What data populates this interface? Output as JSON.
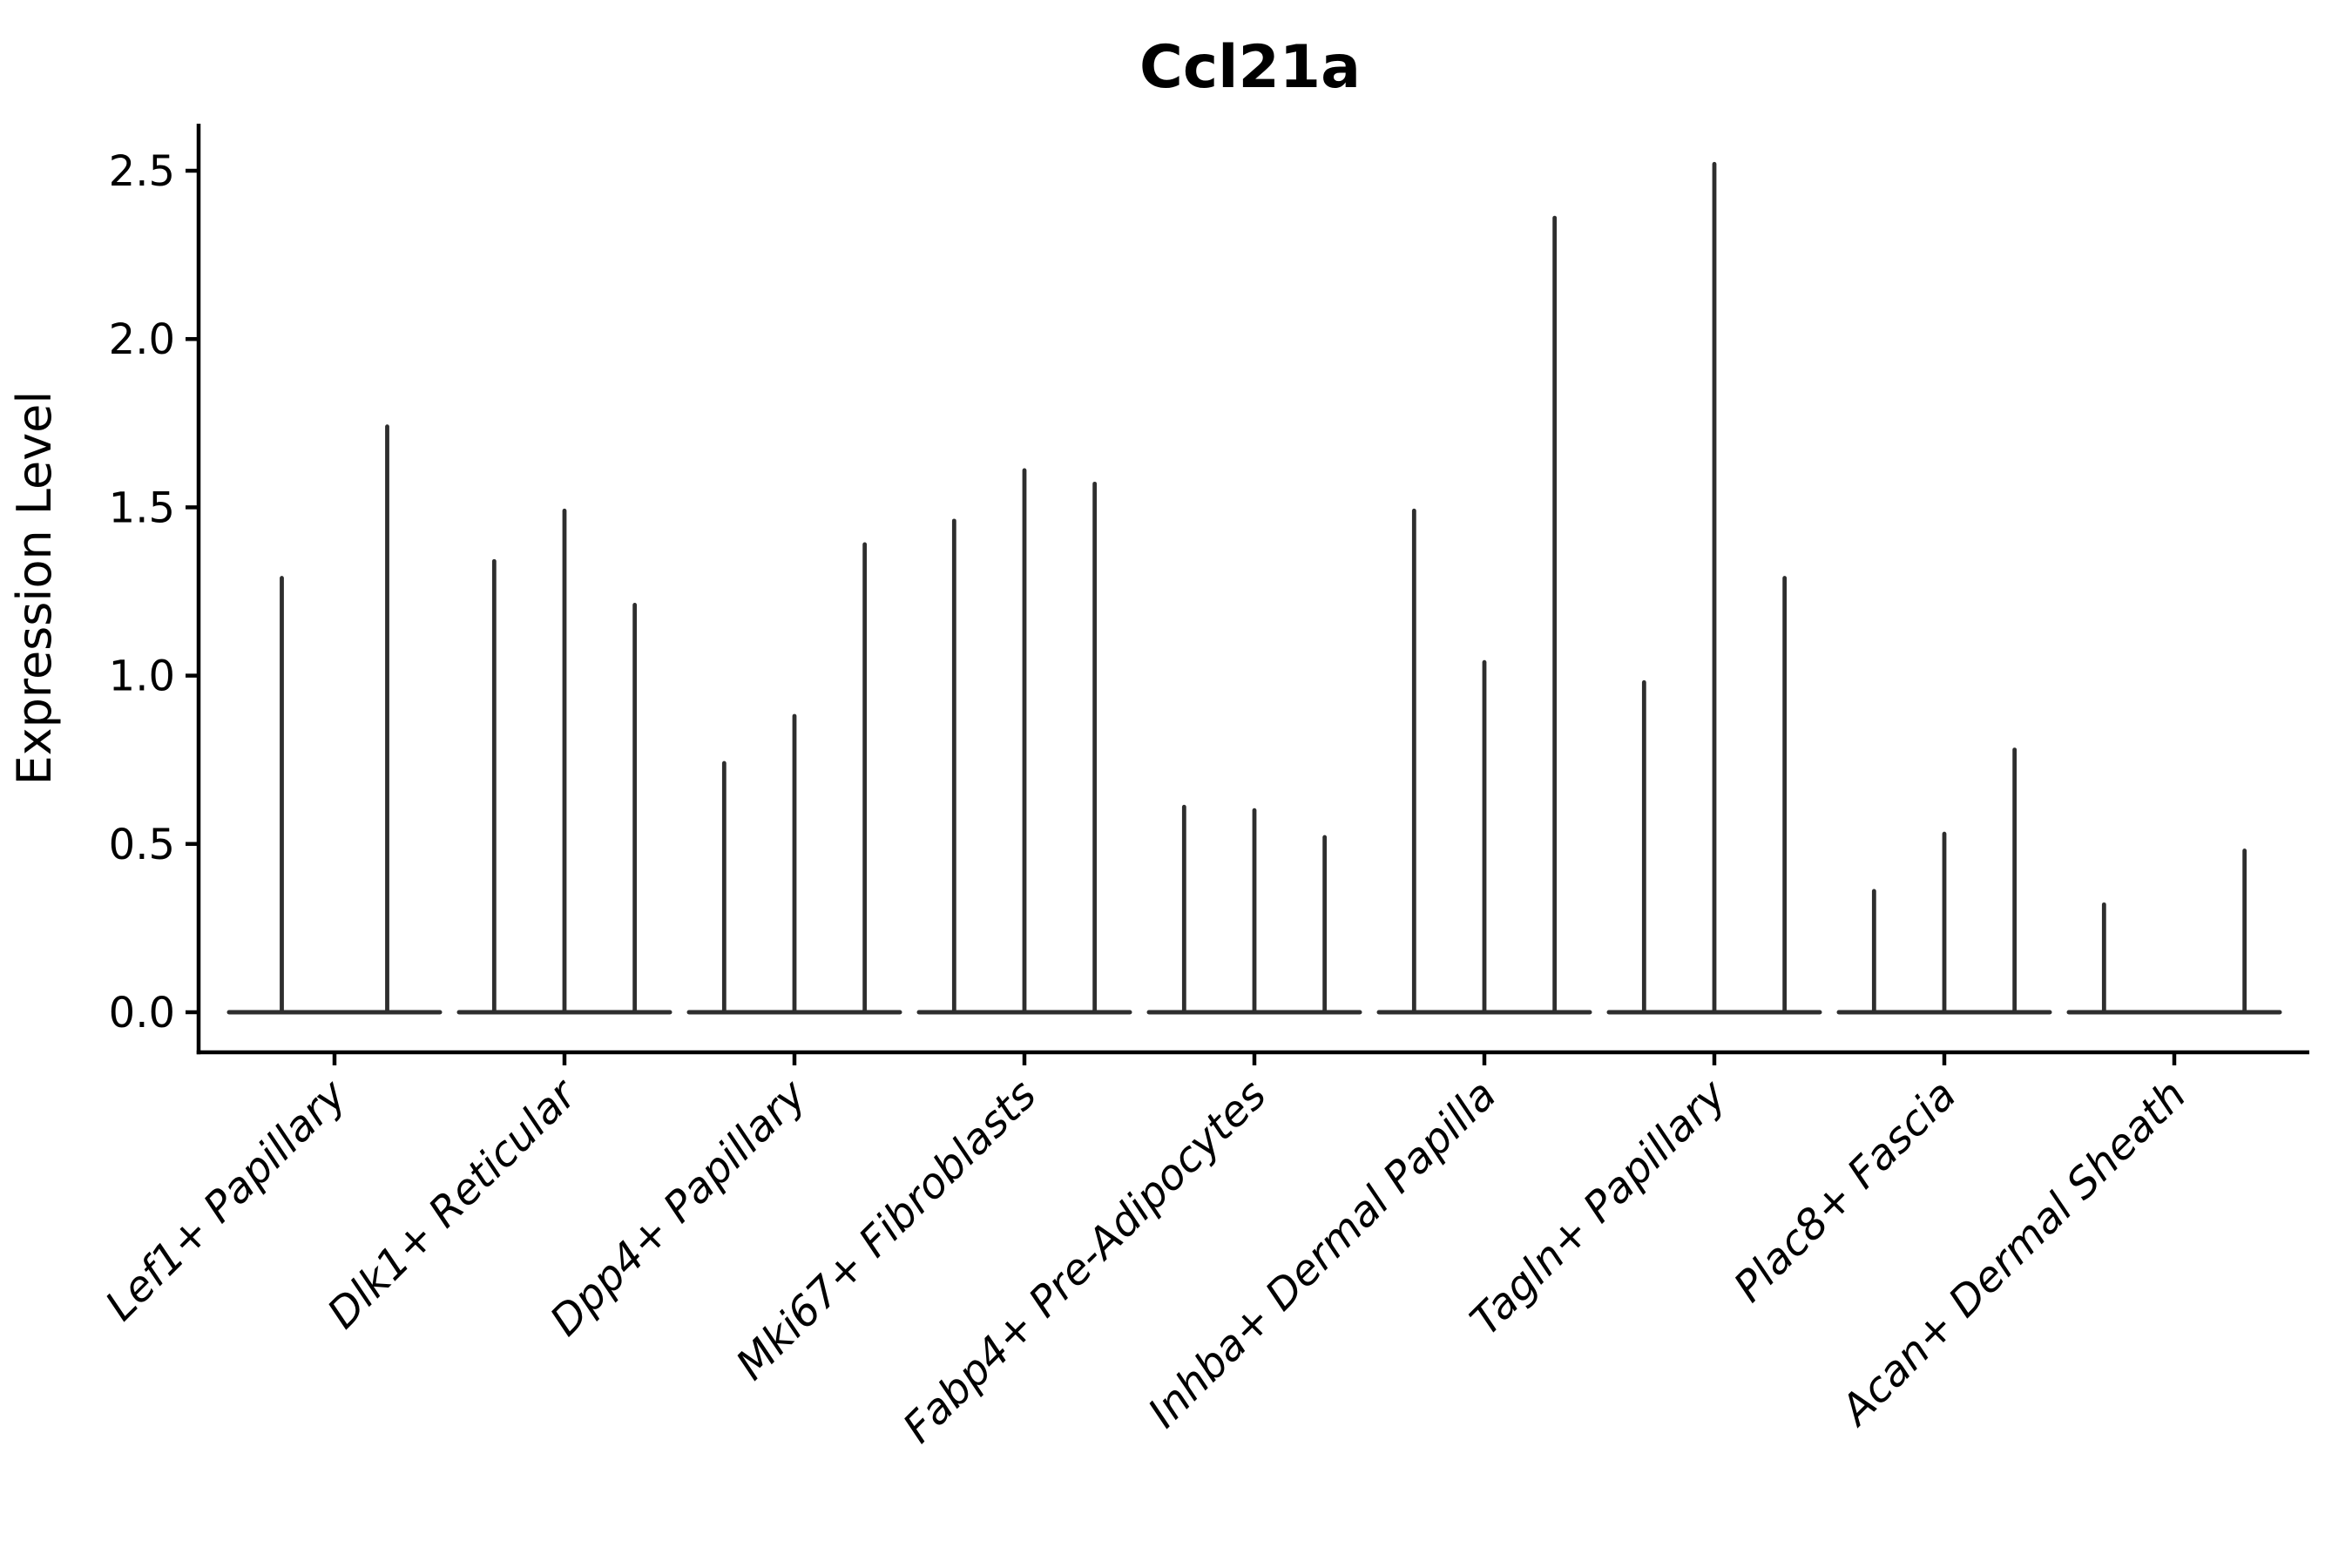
{
  "chart_data": {
    "type": "violin",
    "title": "Ccl21a",
    "ylabel": "Expression Level",
    "xlabel": "",
    "ylim": [
      0,
      2.6
    ],
    "yticks": [
      "0.0",
      "0.5",
      "1.0",
      "1.5",
      "2.0",
      "2.5"
    ],
    "ytick_values": [
      0.0,
      0.5,
      1.0,
      1.5,
      2.0,
      2.5
    ],
    "grid": "off",
    "legend": "none",
    "violin_style": "very thin spike-like violins sitting on a flat baseline at 0",
    "categories": [
      "Lef1+ Papillary",
      "Dlk1+ Reticular",
      "Dpp4+ Papillary",
      "Mki67+ Fibroblasts",
      "Fabp4+ Pre-Adipocytes",
      "Inhba+ Dermal Papilla",
      "Tagln+ Papillary",
      "Plac8+ Fascia",
      "Acan+ Dermal Sheath"
    ],
    "groups": [
      {
        "label": "Lef1+ Papillary",
        "violin_maxima": [
          1.29,
          1.74
        ]
      },
      {
        "label": "Dlk1+ Reticular",
        "violin_maxima": [
          1.34,
          1.49,
          1.21
        ]
      },
      {
        "label": "Dpp4+ Papillary",
        "violin_maxima": [
          0.74,
          0.88,
          1.39
        ]
      },
      {
        "label": "Mki67+ Fibroblasts",
        "violin_maxima": [
          1.46,
          1.61,
          1.57
        ]
      },
      {
        "label": "Fabp4+ Pre-Adipocytes",
        "violin_maxima": [
          0.61,
          0.6,
          0.52
        ]
      },
      {
        "label": "Inhba+ Dermal Papilla",
        "violin_maxima": [
          1.49,
          1.04,
          2.36
        ]
      },
      {
        "label": "Tagln+ Papillary",
        "violin_maxima": [
          0.98,
          2.52,
          1.29
        ]
      },
      {
        "label": "Plac8+ Fascia",
        "violin_maxima": [
          0.36,
          0.53,
          0.78
        ]
      },
      {
        "label": "Acan+ Dermal Sheath",
        "violin_maxima": [
          0.32,
          0.0,
          0.48
        ]
      }
    ],
    "colors": {
      "violin": "#2e2e2e",
      "axis": "#000000",
      "text": "#000000",
      "background": "#ffffff"
    }
  }
}
